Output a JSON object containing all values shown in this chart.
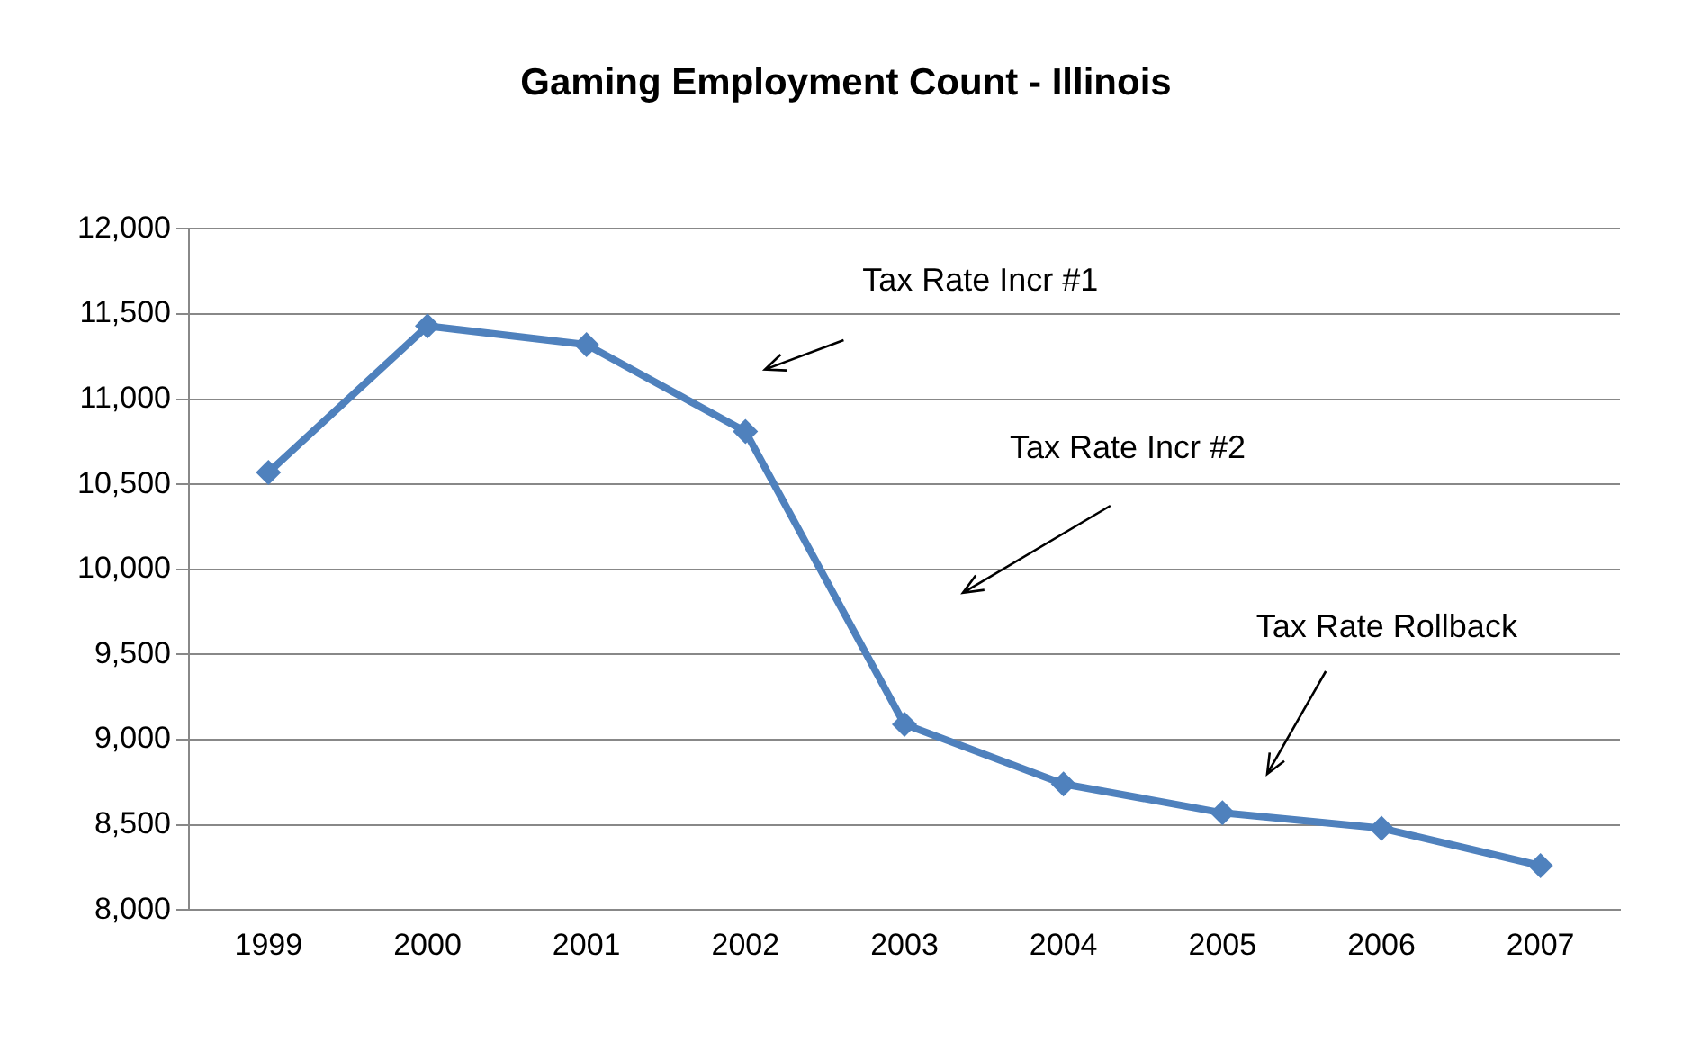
{
  "chart_data": {
    "type": "line",
    "title": "Gaming Employment Count - Illinois",
    "categories": [
      "1999",
      "2000",
      "2001",
      "2002",
      "2003",
      "2004",
      "2005",
      "2006",
      "2007"
    ],
    "series": [
      {
        "color": "#4f81bd",
        "values": [
          10570,
          11430,
          11320,
          10810,
          9090,
          8740,
          8570,
          8480,
          8260
        ]
      }
    ],
    "ylim": [
      8000,
      12000
    ],
    "yticks": [
      {
        "value": 8000,
        "label": "8,000"
      },
      {
        "value": 8500,
        "label": "8,500"
      },
      {
        "value": 9000,
        "label": "9,000"
      },
      {
        "value": 9500,
        "label": "9,500"
      },
      {
        "value": 10000,
        "label": "10,000"
      },
      {
        "value": 10500,
        "label": "10,500"
      },
      {
        "value": 11000,
        "label": "11,000"
      },
      {
        "value": 11500,
        "label": "11,500"
      },
      {
        "value": 12000,
        "label": "12,000"
      }
    ],
    "grid": "y",
    "legend": false,
    "marker": "diamond",
    "line_style": "solid",
    "annotations": [
      "Tax Rate Incr #1",
      "Tax Rate Incr #2",
      "Tax Rate Rollback"
    ]
  }
}
